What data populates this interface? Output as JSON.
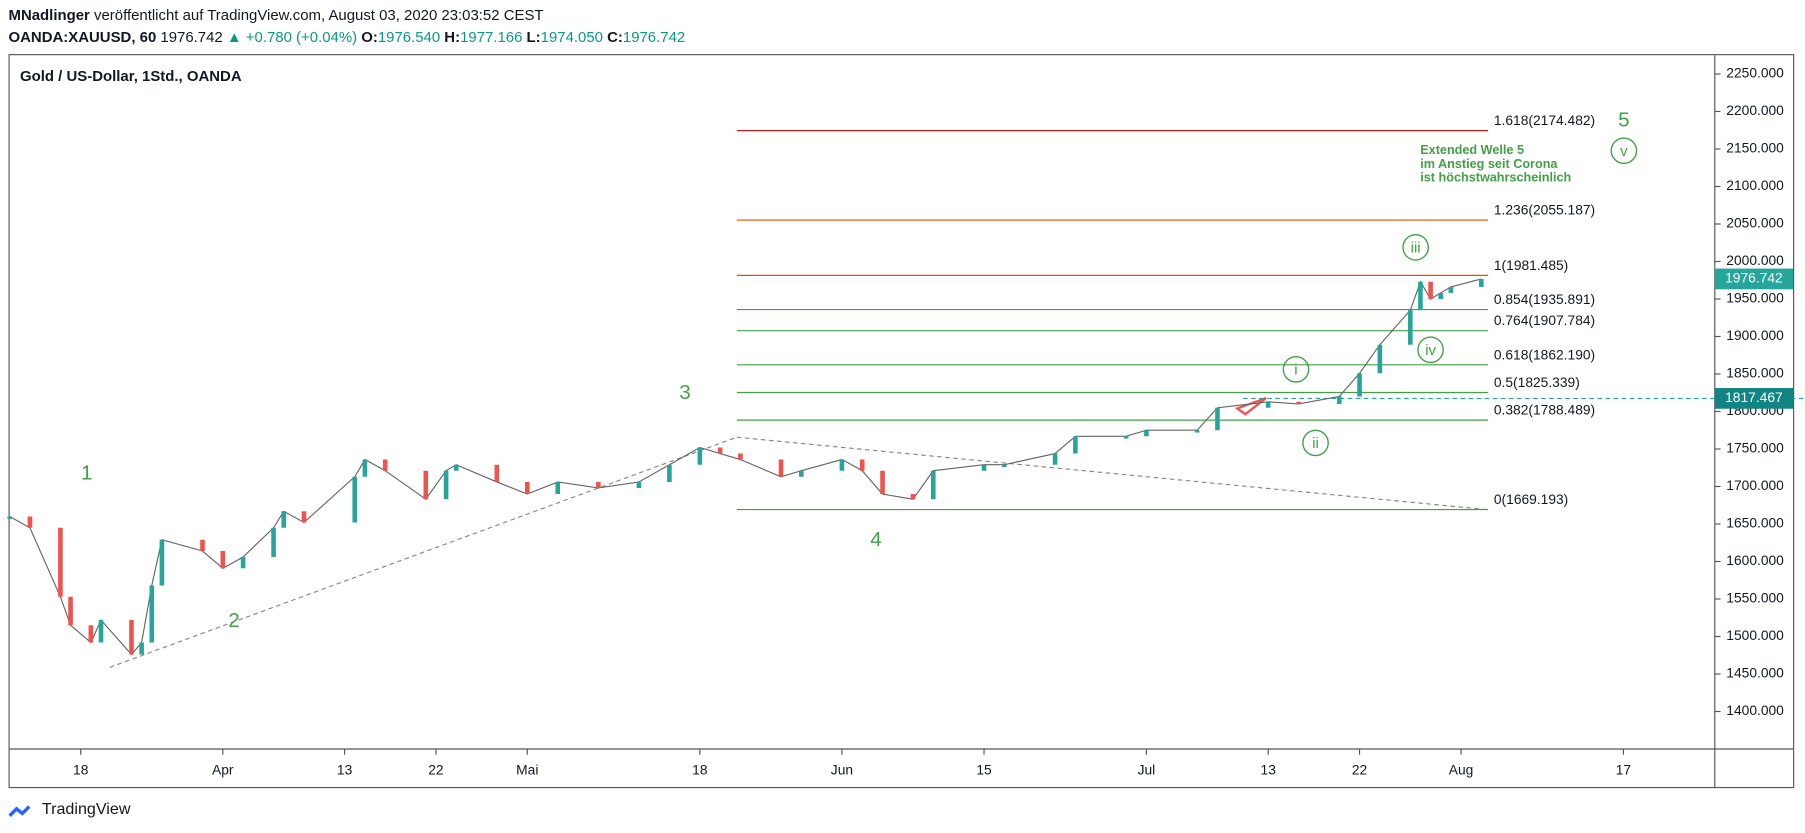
{
  "header": {
    "author": "MNadlinger",
    "published": "veröffentlicht auf TradingView.com, August 03, 2020 23:03:52 CEST",
    "symbol": "OANDA:XAUUSD, 60",
    "last": "1976.742",
    "change": "▲ +0.780 (+0.04%)",
    "o_label": "O:",
    "o": "1976.540",
    "h_label": "H:",
    "h": "1977.166",
    "l_label": "L:",
    "l": "1974.050",
    "c_label": "C:",
    "c": "1976.742"
  },
  "footer": {
    "brand": "TradingView"
  },
  "chart_data": {
    "type": "line",
    "title": "Gold  / US-Dollar, 1Std., OANDA",
    "x": [
      "2020-03-11",
      "2020-03-13",
      "2020-03-16",
      "2020-03-17",
      "2020-03-19",
      "2020-03-20",
      "2020-03-23",
      "2020-03-24",
      "2020-03-25",
      "2020-03-26",
      "2020-03-30",
      "2020-04-01",
      "2020-04-03",
      "2020-04-06",
      "2020-04-07",
      "2020-04-09",
      "2020-04-14",
      "2020-04-15",
      "2020-04-17",
      "2020-04-21",
      "2020-04-23",
      "2020-04-24",
      "2020-04-28",
      "2020-05-01",
      "2020-05-04",
      "2020-05-08",
      "2020-05-12",
      "2020-05-15",
      "2020-05-18",
      "2020-05-20",
      "2020-05-22",
      "2020-05-26",
      "2020-05-28",
      "2020-06-01",
      "2020-06-03",
      "2020-06-05",
      "2020-06-08",
      "2020-06-10",
      "2020-06-15",
      "2020-06-17",
      "2020-06-22",
      "2020-06-24",
      "2020-06-29",
      "2020-07-01",
      "2020-07-06",
      "2020-07-08",
      "2020-07-13",
      "2020-07-16",
      "2020-07-20",
      "2020-07-22",
      "2020-07-24",
      "2020-07-27",
      "2020-07-28",
      "2020-07-29",
      "2020-07-30",
      "2020-07-31",
      "2020-08-03"
    ],
    "series": [
      {
        "name": "OANDA:XAUUSD",
        "color": "#26a69a",
        "down_color": "#ef5350",
        "values": [
          1660,
          1645,
          1553,
          1515,
          1492,
          1522,
          1476,
          1492,
          1568,
          1629,
          1614,
          1591,
          1606,
          1645,
          1667,
          1652,
          1713,
          1736,
          1721,
          1683,
          1721,
          1729,
          1706,
          1690,
          1706,
          1698,
          1706,
          1729,
          1752,
          1744,
          1736,
          1713,
          1721,
          1736,
          1721,
          1690,
          1683,
          1721,
          1729,
          1729,
          1744,
          1767,
          1767,
          1775,
          1775,
          1805,
          1813,
          1810,
          1820,
          1851,
          1889,
          1935,
          1973,
          1950,
          1958,
          1966,
          1976.742
        ]
      }
    ],
    "xlim": [
      "2020-03-11",
      "2020-08-26"
    ],
    "xticks": [
      {
        "value": "2020-03-18",
        "label": "18"
      },
      {
        "value": "2020-04-01",
        "label": "Apr"
      },
      {
        "value": "2020-04-13",
        "label": "13"
      },
      {
        "value": "2020-04-22",
        "label": "22"
      },
      {
        "value": "2020-05-01",
        "label": "Mai"
      },
      {
        "value": "2020-05-18",
        "label": "18"
      },
      {
        "value": "2020-06-01",
        "label": "Jun"
      },
      {
        "value": "2020-06-15",
        "label": "15"
      },
      {
        "value": "2020-07-01",
        "label": "Jul"
      },
      {
        "value": "2020-07-13",
        "label": "13"
      },
      {
        "value": "2020-07-22",
        "label": "22"
      },
      {
        "value": "2020-08-01",
        "label": "Aug"
      },
      {
        "value": "2020-08-17",
        "label": "17"
      }
    ],
    "ylim": [
      1350,
      2275
    ],
    "yticks": [
      {
        "value": 1400,
        "label": "1400.000"
      },
      {
        "value": 1450,
        "label": "1450.000"
      },
      {
        "value": 1500,
        "label": "1500.000"
      },
      {
        "value": 1550,
        "label": "1550.000"
      },
      {
        "value": 1600,
        "label": "1600.000"
      },
      {
        "value": 1650,
        "label": "1650.000"
      },
      {
        "value": 1700,
        "label": "1700.000"
      },
      {
        "value": 1750,
        "label": "1750.000"
      },
      {
        "value": 1800,
        "label": "1800.000"
      },
      {
        "value": 1850,
        "label": "1850.000"
      },
      {
        "value": 1900,
        "label": "1900.000"
      },
      {
        "value": 1950,
        "label": "1950.000"
      },
      {
        "value": 2000,
        "label": "2000.000"
      },
      {
        "value": 2050,
        "label": "2050.000"
      },
      {
        "value": 2100,
        "label": "2100.000"
      },
      {
        "value": 2150,
        "label": "2150.000"
      },
      {
        "value": 2200,
        "label": "2200.000"
      },
      {
        "value": 2250,
        "label": "2250.000"
      }
    ],
    "fib_levels": [
      {
        "value": 2174.482,
        "label": "1.618(2174.482)",
        "color": "#b71c1c"
      },
      {
        "value": 2055.187,
        "label": "1.236(2055.187)",
        "color": "#e65100"
      },
      {
        "value": 1981.485,
        "label": "1(1981.485)",
        "color": "#e65100"
      },
      {
        "value": 1935.891,
        "label": "0.854(1935.891)",
        "color": "#43a047"
      },
      {
        "value": 1907.784,
        "label": "0.764(1907.784)",
        "color": "#43a047"
      },
      {
        "value": 1862.19,
        "label": "0.618(1862.190)",
        "color": "#43a047"
      },
      {
        "value": 1825.339,
        "label": "0.5(1825.339)",
        "color": "#43a047"
      },
      {
        "value": 1788.489,
        "label": "0.382(1788.489)",
        "color": "#43a047"
      },
      {
        "value": 1669.193,
        "label": "0(1669.193)",
        "color": "#43a047"
      }
    ],
    "last_price": 1976.742,
    "marker_price": 1817.467,
    "waves": [
      "1",
      "2",
      "3",
      "4",
      "5"
    ],
    "sub_waves": [
      "i",
      "ii",
      "iii",
      "iv",
      "v"
    ],
    "annotation": [
      "Extended Welle 5",
      "im Anstieg seit Corona",
      "ist höchstwahrscheinlich"
    ]
  }
}
